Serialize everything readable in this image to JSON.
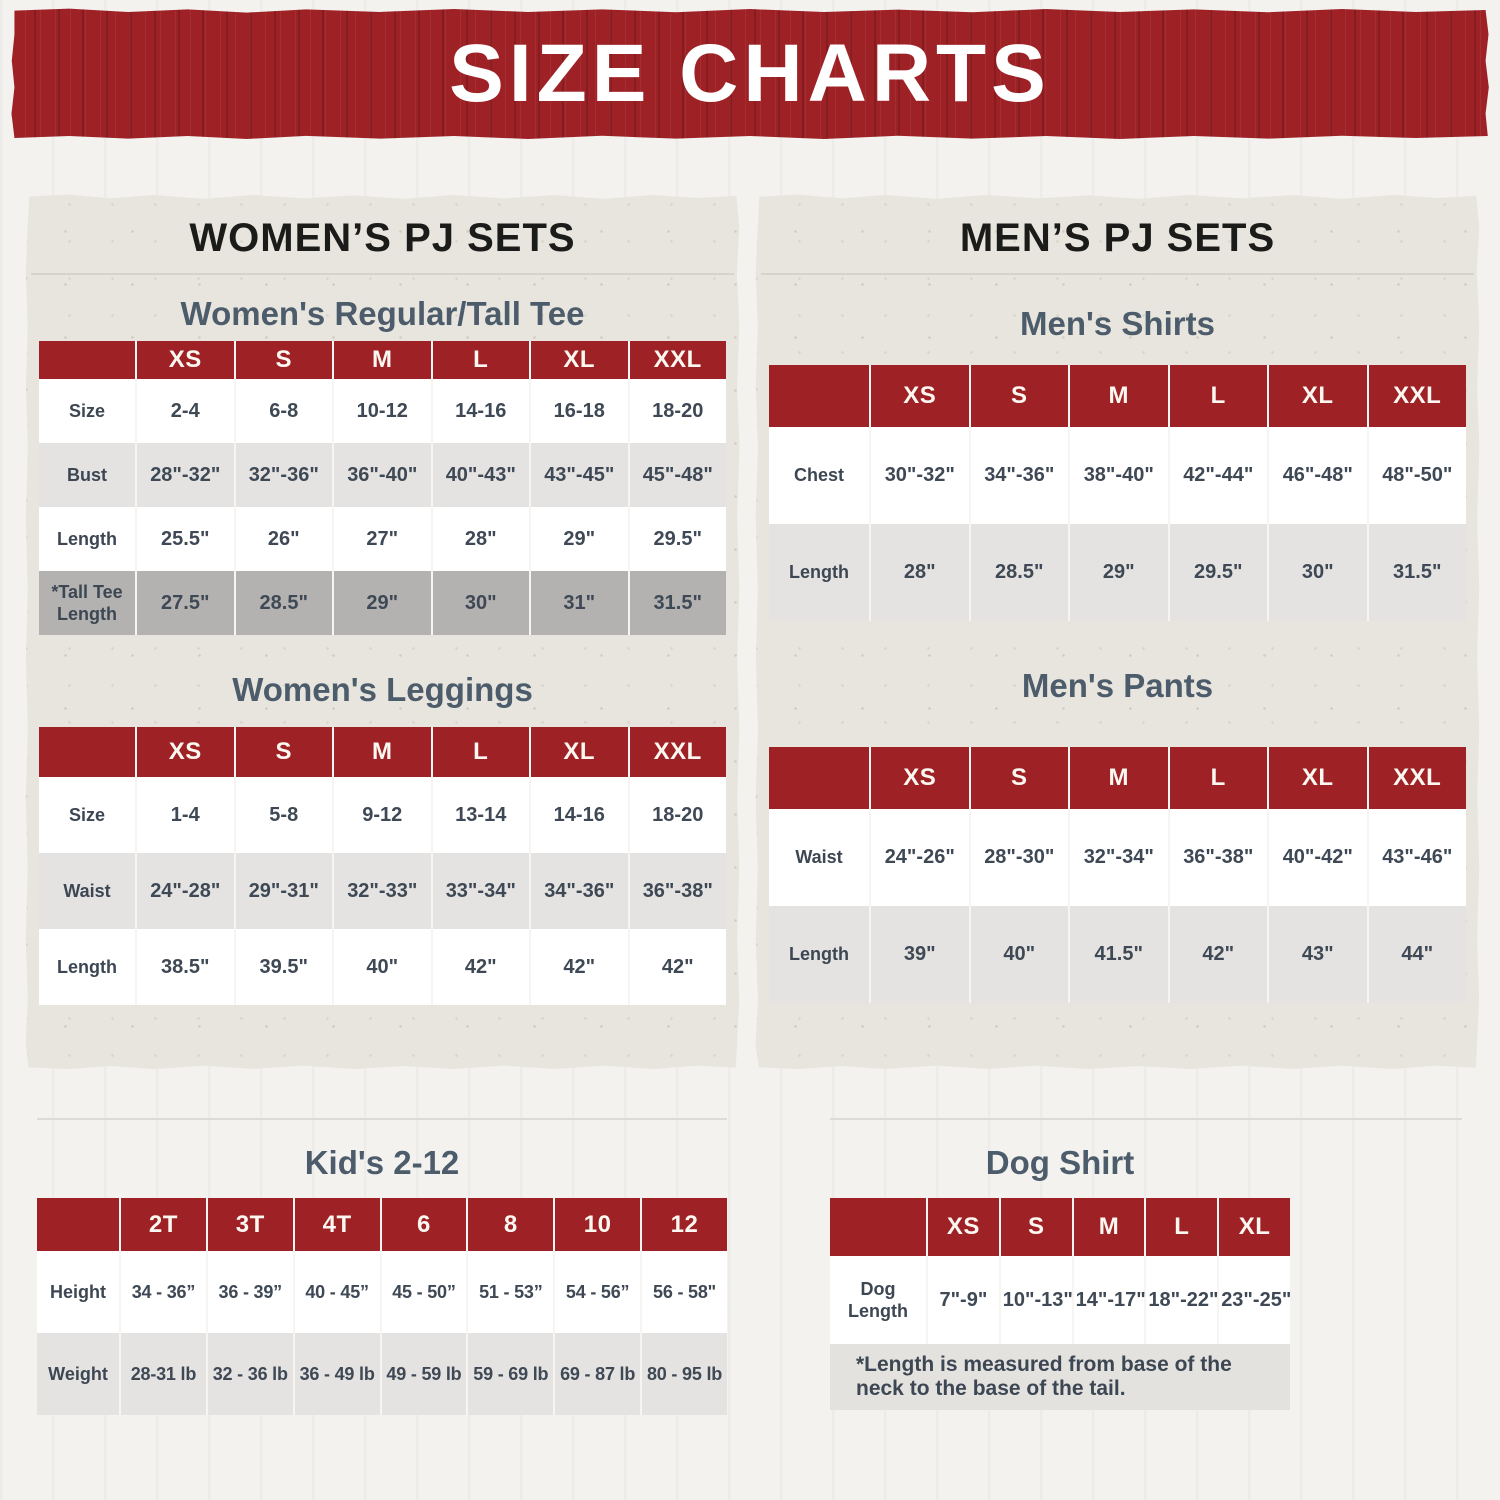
{
  "banner": {
    "title": "SIZE CHARTS"
  },
  "colors": {
    "accent_red": "#9e2126",
    "panel_beige": "#e8e5de",
    "row_light_gray": "#e4e3e1",
    "row_dark_gray": "#b3b2b1",
    "text_slate": "#3d4753",
    "subtitle_slate": "#4c5c6b",
    "header_text": "#fcf8f1"
  },
  "womens": {
    "title": "WOMEN’S PJ SETS",
    "tee": {
      "subtitle": "Women's Regular/Tall Tee",
      "columns": [
        "XS",
        "S",
        "M",
        "L",
        "XL",
        "XXL"
      ],
      "rows": [
        {
          "label": "Size",
          "shade": "white",
          "values": [
            "2-4",
            "6-8",
            "10-12",
            "14-16",
            "16-18",
            "18-20"
          ]
        },
        {
          "label": "Bust",
          "shade": "light",
          "values": [
            "28\"-32\"",
            "32\"-36\"",
            "36\"-40\"",
            "40\"-43\"",
            "43\"-45\"",
            "45\"-48\""
          ]
        },
        {
          "label": "Length",
          "shade": "white",
          "values": [
            "25.5\"",
            "26\"",
            "27\"",
            "28\"",
            "29\"",
            "29.5\""
          ]
        },
        {
          "label": "*Tall Tee Length",
          "shade": "dark",
          "values": [
            "27.5\"",
            "28.5\"",
            "29\"",
            "30\"",
            "31\"",
            "31.5\""
          ]
        }
      ]
    },
    "leggings": {
      "subtitle": "Women's Leggings",
      "columns": [
        "XS",
        "S",
        "M",
        "L",
        "XL",
        "XXL"
      ],
      "rows": [
        {
          "label": "Size",
          "shade": "white",
          "values": [
            "1-4",
            "5-8",
            "9-12",
            "13-14",
            "14-16",
            "18-20"
          ]
        },
        {
          "label": "Waist",
          "shade": "light",
          "values": [
            "24\"-28\"",
            "29\"-31\"",
            "32\"-33\"",
            "33\"-34\"",
            "34\"-36\"",
            "36\"-38\""
          ]
        },
        {
          "label": "Length",
          "shade": "white",
          "values": [
            "38.5\"",
            "39.5\"",
            "40\"",
            "42\"",
            "42\"",
            "42\""
          ]
        }
      ]
    }
  },
  "mens": {
    "title": "MEN’S PJ SETS",
    "shirts": {
      "subtitle": "Men's Shirts",
      "columns": [
        "XS",
        "S",
        "M",
        "L",
        "XL",
        "XXL"
      ],
      "rows": [
        {
          "label": "Chest",
          "shade": "white",
          "values": [
            "30\"-32\"",
            "34\"-36\"",
            "38\"-40\"",
            "42\"-44\"",
            "46\"-48\"",
            "48\"-50\""
          ]
        },
        {
          "label": "Length",
          "shade": "light",
          "values": [
            "28\"",
            "28.5\"",
            "29\"",
            "29.5\"",
            "30\"",
            "31.5\""
          ]
        }
      ]
    },
    "pants": {
      "subtitle": "Men's Pants",
      "columns": [
        "XS",
        "S",
        "M",
        "L",
        "XL",
        "XXL"
      ],
      "rows": [
        {
          "label": "Waist",
          "shade": "white",
          "values": [
            "24\"-26\"",
            "28\"-30\"",
            "32\"-34\"",
            "36\"-38\"",
            "40\"-42\"",
            "43\"-46\""
          ]
        },
        {
          "label": "Length",
          "shade": "light",
          "values": [
            "39\"",
            "40\"",
            "41.5\"",
            "42\"",
            "43\"",
            "44\""
          ]
        }
      ]
    }
  },
  "kids": {
    "subtitle": "Kid's 2-12",
    "columns": [
      "2T",
      "3T",
      "4T",
      "6",
      "8",
      "10",
      "12"
    ],
    "rows": [
      {
        "label": "Height",
        "shade": "white",
        "values": [
          "34 - 36”",
          "36 - 39”",
          "40 - 45”",
          "45 - 50”",
          "51 - 53”",
          "54 - 56”",
          "56 - 58\""
        ]
      },
      {
        "label": "Weight",
        "shade": "light",
        "values": [
          "28-31 lb",
          "32 - 36 lb",
          "36 - 49 lb",
          "49 - 59 lb",
          "59 - 69 lb",
          "69 - 87 lb",
          "80 - 95 lb"
        ]
      }
    ]
  },
  "dog": {
    "subtitle": "Dog Shirt",
    "columns": [
      "XS",
      "S",
      "M",
      "L",
      "XL"
    ],
    "rows": [
      {
        "label": "Dog Length",
        "shade": "white",
        "values": [
          "7\"-9\"",
          "10\"-13\"",
          "14\"-17\"",
          "18\"-22\"",
          "23\"-25\""
        ]
      }
    ],
    "footnote": "*Length is measured from base of the neck to the base of the tail."
  }
}
